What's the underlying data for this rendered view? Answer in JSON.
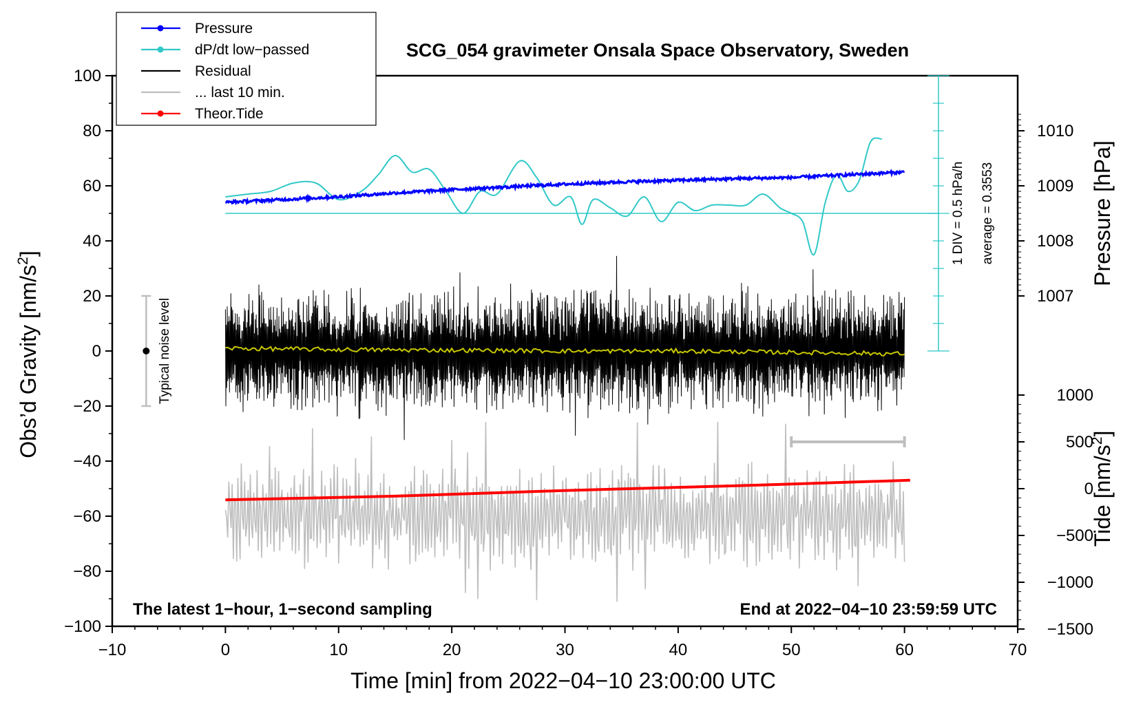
{
  "chart_data": {
    "type": "line",
    "title": "SCG_054 gravimeter Onsala Space Observatory, Sweden",
    "xlabel": "Time [min] from 2022−04−10 23:00:00 UTC",
    "ylabel_main": "Obs’d Gravity [nm/s",
    "ylabel_sup": "2",
    "ylabel_close": "]",
    "y2label": "Pressure [hPa]",
    "y3label_main": "Tide [nm/s",
    "y3label_sup": "2",
    "y3label_close": "]",
    "xlim": [
      -10,
      70
    ],
    "ylim": [
      -100,
      100
    ],
    "xticks": [
      "−10",
      "0",
      "10",
      "20",
      "30",
      "40",
      "50",
      "60",
      "70"
    ],
    "yticks": [
      "100",
      "80",
      "60",
      "40",
      "20",
      "0",
      "−20",
      "−40",
      "−60",
      "−80",
      "−100"
    ],
    "pressure_ticks": [
      "1010",
      "1009",
      "1008",
      "1007"
    ],
    "pressure_tick_values": [
      1010,
      1009,
      1008,
      1007
    ],
    "tide_ticks": [
      "1000",
      "500",
      "0",
      "−500",
      "−1000",
      "−1500"
    ],
    "tide_tick_values": [
      1000,
      500,
      0,
      -500,
      -1000,
      -1500
    ],
    "legend": [
      {
        "label": "Pressure",
        "color": "#0000ff",
        "marker": true
      },
      {
        "label": "dP/dt low−passed",
        "color": "#30c8c8",
        "marker": true
      },
      {
        "label": "Residual",
        "color": "#000000",
        "marker": false
      },
      {
        "label": "... last 10 min.",
        "color": "#bebebe",
        "marker": false
      },
      {
        "label": "Theor.Tide",
        "color": "#ff0000",
        "marker": true
      }
    ],
    "annotations": {
      "bottom_left": "The latest 1−hour, 1−second sampling",
      "bottom_right": "End at 2022−04−10 23:59:59 UTC",
      "noise_label": "Typical noise level",
      "dpdt_scale": "1 DIV = 0.5 hPa/h",
      "dpdt_average": "average = 0.3553"
    },
    "noise_level": {
      "x": -7,
      "center": 0,
      "low": -20,
      "high": 20
    },
    "last10_bar": {
      "x_start": 50,
      "x_end": 60,
      "y": -33
    },
    "series": [
      {
        "name": "Pressure",
        "axis": "pressure_hPa",
        "color": "#0000ff",
        "x": [
          0,
          5,
          10,
          15,
          20,
          25,
          30,
          35,
          40,
          45,
          50,
          55,
          60
        ],
        "values": [
          1008.7,
          1008.75,
          1008.8,
          1008.87,
          1008.93,
          1008.98,
          1009.03,
          1009.07,
          1009.1,
          1009.13,
          1009.15,
          1009.2,
          1009.25
        ]
      },
      {
        "name": "dP/dt low−passed",
        "axis": "gravity_plot_units",
        "color": "#30c8c8",
        "x": [
          0,
          2,
          4,
          6,
          8,
          10,
          12,
          13.5,
          15,
          16.5,
          18,
          19.5,
          21,
          22.5,
          24,
          26,
          27.5,
          29,
          30.5,
          31.5,
          32.5,
          34,
          35.5,
          37,
          38.5,
          40,
          41.5,
          43,
          44.5,
          46,
          47.5,
          49,
          50,
          51,
          52,
          53,
          54,
          55,
          56,
          57,
          58
        ],
        "values": [
          56,
          57,
          58,
          61,
          61,
          55,
          58,
          64,
          71,
          65,
          66,
          58,
          50,
          58,
          57,
          69,
          63,
          53,
          56,
          46,
          55,
          52,
          49,
          56,
          47,
          54,
          51,
          53,
          53,
          53,
          57,
          52,
          50,
          47,
          35,
          54,
          64,
          58,
          62,
          76,
          77
        ]
      },
      {
        "name": "dP/dt baseline",
        "axis": "gravity_plot_units",
        "color": "#30c8c8",
        "x": [
          0,
          63
        ],
        "values": [
          50,
          50
        ]
      },
      {
        "name": "Residual",
        "axis": "gravity_plot_units",
        "color": "#000000",
        "x": [
          0,
          60
        ],
        "values": [
          0,
          0
        ],
        "envelope_typical": [
          -25,
          25
        ],
        "envelope_extreme": [
          -37,
          37
        ]
      },
      {
        "name": "Residual smoothed",
        "axis": "gravity_plot_units",
        "color": "#c8c800",
        "x": [
          0,
          10,
          20,
          30,
          40,
          50,
          60
        ],
        "values": [
          1,
          0.5,
          0.3,
          0,
          0,
          -0.5,
          -1
        ]
      },
      {
        "name": "... last 10 min.",
        "axis": "gravity_plot_units",
        "color": "#bebebe",
        "x": [
          0,
          60
        ],
        "center": -60,
        "amplitude": 20,
        "amplitude_extreme": 35
      },
      {
        "name": "Theor.Tide",
        "axis": "tide_nm_s2",
        "color": "#ff0000",
        "x": [
          0,
          15,
          30,
          45,
          60.5
        ],
        "values": [
          -120,
          -80,
          -20,
          30,
          90
        ]
      }
    ]
  }
}
